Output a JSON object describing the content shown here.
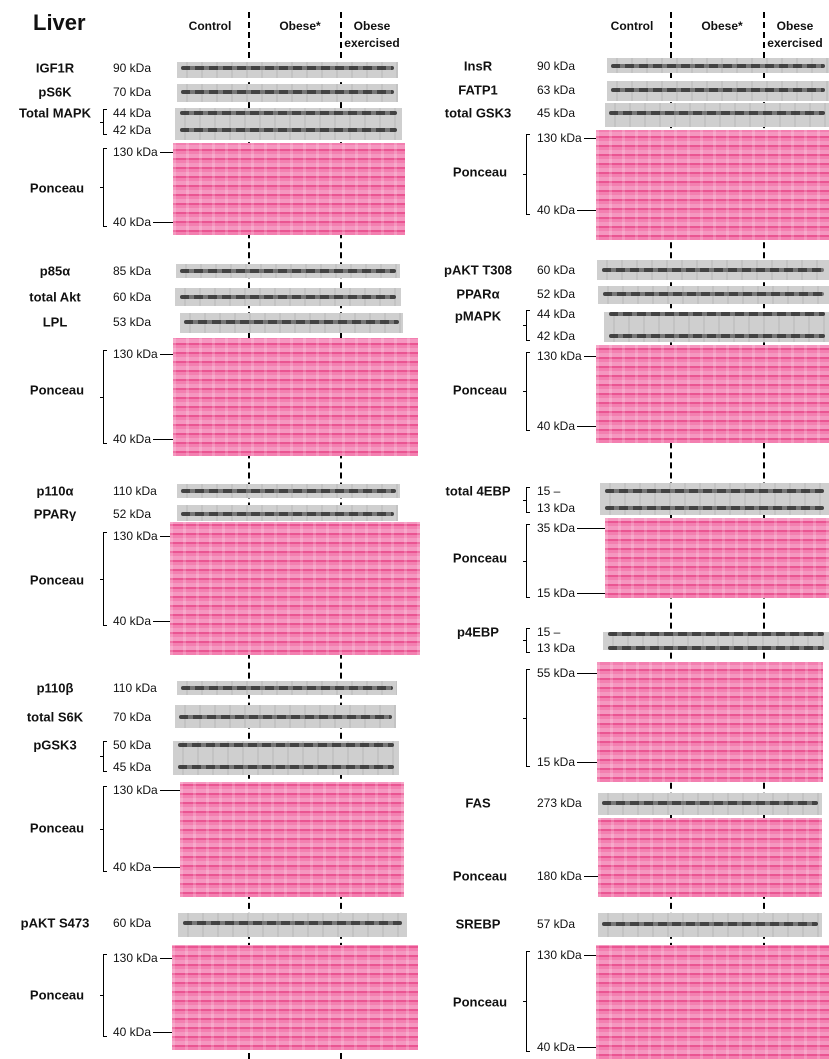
{
  "title": "Liver",
  "columns": [
    {
      "groups": [
        "Control",
        "Obese*",
        "Obese exercised"
      ],
      "rows": [
        {
          "label": "IGF1R",
          "markers": [
            "90 kDa"
          ]
        },
        {
          "label": "pS6K",
          "markers": [
            "70 kDa"
          ]
        },
        {
          "label": "Total MAPK",
          "markers": [
            "44 kDa",
            "42 kDa"
          ]
        },
        {
          "label": "Ponceau",
          "markers": [
            "130 kDa",
            "40 kDa"
          ]
        },
        {
          "label": "p85α",
          "markers": [
            "85 kDa"
          ]
        },
        {
          "label": "total Akt",
          "markers": [
            "60 kDa"
          ]
        },
        {
          "label": "LPL",
          "markers": [
            "53 kDa"
          ]
        },
        {
          "label": "Ponceau",
          "markers": [
            "130 kDa",
            "40 kDa"
          ]
        },
        {
          "label": "p110α",
          "markers": [
            "110 kDa"
          ]
        },
        {
          "label": "PPARγ",
          "markers": [
            "52 kDa"
          ]
        },
        {
          "label": "Ponceau",
          "markers": [
            "130 kDa",
            "40 kDa"
          ]
        },
        {
          "label": "p110β",
          "markers": [
            "110 kDa"
          ]
        },
        {
          "label": "total S6K",
          "markers": [
            "70 kDa"
          ]
        },
        {
          "label": "pGSK3",
          "markers": [
            "50 kDa",
            "45 kDa"
          ]
        },
        {
          "label": "Ponceau",
          "markers": [
            "130 kDa",
            "40 kDa"
          ]
        },
        {
          "label": "pAKT S473",
          "markers": [
            "60 kDa"
          ]
        },
        {
          "label": "Ponceau",
          "markers": [
            "130 kDa",
            "40 kDa"
          ]
        }
      ]
    },
    {
      "groups": [
        "Control",
        "Obese*",
        "Obese exercised"
      ],
      "rows": [
        {
          "label": "InsR",
          "markers": [
            "90 kDa"
          ]
        },
        {
          "label": "FATP1",
          "markers": [
            "63 kDa"
          ]
        },
        {
          "label": "total GSK3",
          "markers": [
            "45 kDa"
          ]
        },
        {
          "label": "Ponceau",
          "markers": [
            "130 kDa",
            "40 kDa"
          ]
        },
        {
          "label": "pAKT T308",
          "markers": [
            "60 kDa"
          ]
        },
        {
          "label": "PPARα",
          "markers": [
            "52 kDa"
          ]
        },
        {
          "label": "pMAPK",
          "markers": [
            "44 kDa",
            "42 kDa"
          ]
        },
        {
          "label": "Ponceau",
          "markers": [
            "130 kDa",
            "40 kDa"
          ]
        },
        {
          "label": "total 4EBP",
          "markers": [
            "15 –",
            "13 kDa"
          ]
        },
        {
          "label": "Ponceau",
          "markers": [
            "35 kDa",
            "15 kDa"
          ]
        },
        {
          "label": "p4EBP",
          "markers": [
            "15 –",
            "13 kDa"
          ]
        },
        {
          "markers": [
            "55 kDa",
            "15 kDa"
          ]
        },
        {
          "label": "FAS",
          "markers": [
            "273 kDa"
          ]
        },
        {
          "label": "Ponceau",
          "markers": [
            "180 kDa"
          ]
        },
        {
          "label": "SREBP",
          "markers": [
            "57 kDa"
          ]
        },
        {
          "label": "Ponceau",
          "markers": [
            "130 kDa",
            "40 kDa"
          ]
        }
      ]
    }
  ]
}
